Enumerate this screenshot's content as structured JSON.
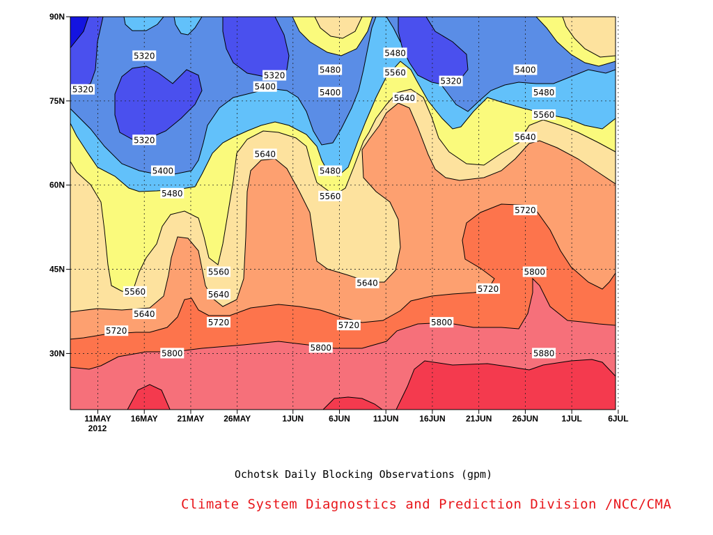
{
  "chart_data": {
    "type": "contour",
    "title": "Ochotsk Daily Blocking Observations (gpm)",
    "credit": "Climate System Diagnostics and Prediction Division /NCC/CMA",
    "x_ticks": [
      "11MAY",
      "16MAY",
      "21MAY",
      "26MAY",
      "1JUN",
      "6JUN",
      "11JUN",
      "16JUN",
      "21JUN",
      "26JUN",
      "1JUL",
      "6JUL"
    ],
    "x_year": "2012",
    "y_ticks": [
      "30N",
      "45N",
      "60N",
      "75N",
      "90N"
    ],
    "y_tick_values": [
      30,
      45,
      60,
      75,
      90
    ],
    "ylim": [
      20,
      90
    ],
    "contour_levels": [
      5240,
      5320,
      5400,
      5480,
      5560,
      5640,
      5720,
      5800,
      5880
    ],
    "fill_colors": [
      "#1414e0",
      "#4a50ee",
      "#5a8de6",
      "#62c1fa",
      "#fafa7c",
      "#fde29e",
      "#fda070",
      "#fd744c",
      "#f6707a",
      "#f43a4e"
    ],
    "contour_labels": [
      {
        "value": "5320",
        "date": "8MAY",
        "lat": 77
      },
      {
        "value": "5320",
        "date": "16MAY",
        "lat": 83
      },
      {
        "value": "5320",
        "date": "16MAY",
        "lat": 68
      },
      {
        "value": "5400",
        "date": "18MAY",
        "lat": 62.5
      },
      {
        "value": "5480",
        "date": "19MAY",
        "lat": 58.5
      },
      {
        "value": "5320",
        "date": "30MAY",
        "lat": 79.5
      },
      {
        "value": "5400",
        "date": "29MAY",
        "lat": 77.5
      },
      {
        "value": "5640",
        "date": "29MAY",
        "lat": 65.5
      },
      {
        "value": "5480",
        "date": "5JUN",
        "lat": 80.5
      },
      {
        "value": "5400",
        "date": "5JUN",
        "lat": 76.5
      },
      {
        "value": "5480",
        "date": "5JUN",
        "lat": 62.5
      },
      {
        "value": "5560",
        "date": "5JUN",
        "lat": 58
      },
      {
        "value": "5480",
        "date": "12JUN",
        "lat": 83.5
      },
      {
        "value": "5560",
        "date": "12JUN",
        "lat": 80
      },
      {
        "value": "5640",
        "date": "13JUN",
        "lat": 75.5
      },
      {
        "value": "5320",
        "date": "18JUN",
        "lat": 78.5
      },
      {
        "value": "5400",
        "date": "26JUN",
        "lat": 80.5
      },
      {
        "value": "5480",
        "date": "28JUN",
        "lat": 76.5
      },
      {
        "value": "5560",
        "date": "28JUN",
        "lat": 72.5
      },
      {
        "value": "5640",
        "date": "26JUN",
        "lat": 68.5
      },
      {
        "value": "5720",
        "date": "26JUN",
        "lat": 55.5
      },
      {
        "value": "5800",
        "date": "27JUN",
        "lat": 44.5
      },
      {
        "value": "5720",
        "date": "22JUN",
        "lat": 41.5
      },
      {
        "value": "5640",
        "date": "9JUN",
        "lat": 42.5
      },
      {
        "value": "5560",
        "date": "24MAY",
        "lat": 44.5
      },
      {
        "value": "5640",
        "date": "24MAY",
        "lat": 40.5
      },
      {
        "value": "5720",
        "date": "24MAY",
        "lat": 35.5
      },
      {
        "value": "5560",
        "date": "15MAY",
        "lat": 41
      },
      {
        "value": "5640",
        "date": "16MAY",
        "lat": 37
      },
      {
        "value": "5720",
        "date": "13MAY",
        "lat": 34
      },
      {
        "value": "5800",
        "date": "19MAY",
        "lat": 30
      },
      {
        "value": "5800",
        "date": "4JUN",
        "lat": 31
      },
      {
        "value": "5720",
        "date": "7JUN",
        "lat": 35
      },
      {
        "value": "5800",
        "date": "17JUN",
        "lat": 35.5
      },
      {
        "value": "5880",
        "date": "28JUN",
        "lat": 30
      }
    ]
  }
}
